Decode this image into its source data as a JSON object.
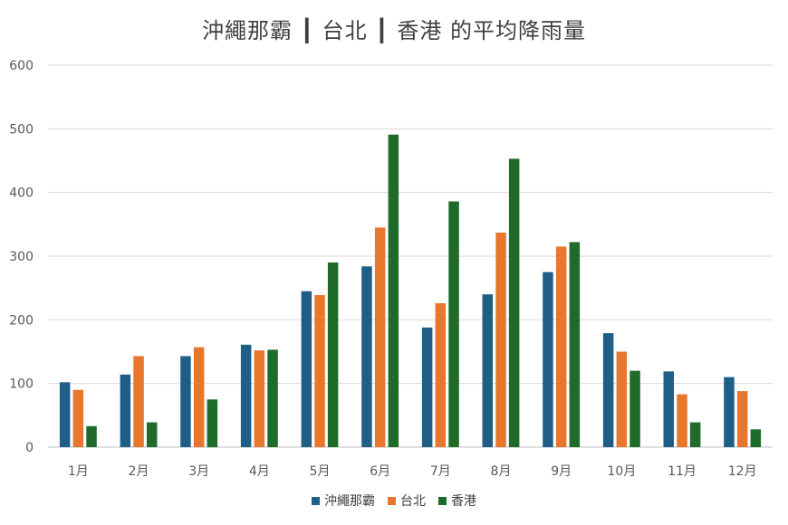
{
  "chart_data": {
    "type": "bar",
    "title": "沖繩那霸 ┃ 台北 ┃ 香港 的平均降雨量",
    "categories": [
      "1月",
      "2月",
      "3月",
      "4月",
      "5月",
      "6月",
      "7月",
      "8月",
      "9月",
      "10月",
      "11月",
      "12月"
    ],
    "series": [
      {
        "name": "沖繩那霸",
        "color": "#1f5f87",
        "values": [
          102,
          114,
          143,
          161,
          245,
          284,
          188,
          240,
          275,
          179,
          119,
          110
        ]
      },
      {
        "name": "台北",
        "color": "#e8772e",
        "values": [
          90,
          143,
          157,
          152,
          239,
          345,
          226,
          337,
          315,
          150,
          83,
          88
        ]
      },
      {
        "name": "香港",
        "color": "#1e6b2a",
        "values": [
          33,
          39,
          75,
          153,
          290,
          491,
          386,
          453,
          322,
          120,
          39,
          28
        ]
      }
    ],
    "ylim": [
      0,
      600
    ],
    "yticks": [
      0,
      100,
      200,
      300,
      400,
      500,
      600
    ],
    "grid": true,
    "legend": "bottom"
  }
}
